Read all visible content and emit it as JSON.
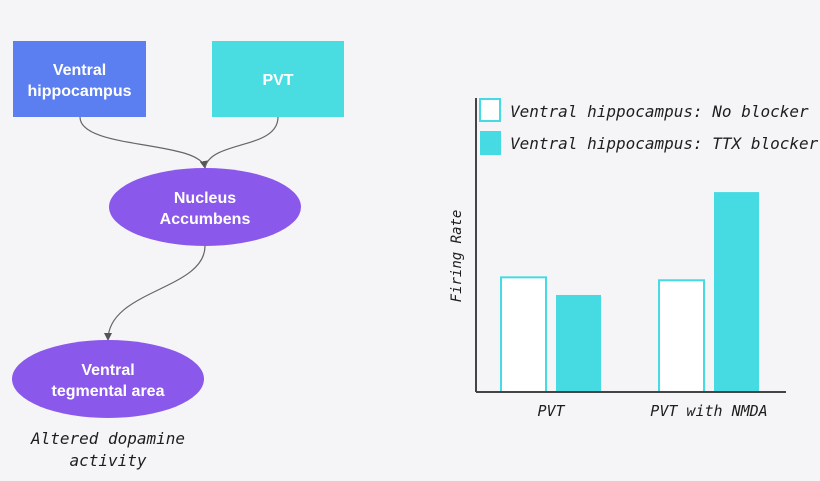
{
  "colors": {
    "background": "#f5f5f7",
    "hippocampus_box": "#5b7ff0",
    "pvt_box": "#49dde2",
    "ellipse": "#8b58ec",
    "bar_no_blocker": "#ffffff",
    "bar_ttx_blocker": "#46dbe3",
    "axis": "#444444"
  },
  "diagram": {
    "nodes": {
      "ventral_hippocampus": {
        "line1": "Ventral",
        "line2": "hippocampus",
        "shape": "rectangle"
      },
      "pvt": {
        "label": "PVT",
        "shape": "rectangle"
      },
      "nucleus_accumbens": {
        "line1": "Nucleus",
        "line2": "Accumbens",
        "shape": "ellipse"
      },
      "vta": {
        "line1": "Ventral",
        "line2": "tegmental area",
        "shape": "ellipse"
      }
    },
    "edges": [
      {
        "from": "ventral_hippocampus",
        "to": "nucleus_accumbens"
      },
      {
        "from": "pvt",
        "to": "nucleus_accumbens"
      },
      {
        "from": "nucleus_accumbens",
        "to": "vta"
      }
    ],
    "caption": {
      "line1": "Altered dopamine",
      "line2": "activity"
    }
  },
  "chart_data": {
    "type": "bar",
    "ylabel": "Firing Rate",
    "xlabel": "",
    "categories": [
      "PVT",
      "PVT with NMDA"
    ],
    "series": [
      {
        "name": "Ventral hippocampus: No blocker",
        "values": [
          0.39,
          0.38
        ],
        "color": "#ffffff"
      },
      {
        "name": "Ventral hippocampus: TTX blocker",
        "values": [
          0.33,
          0.68
        ],
        "color": "#46dbe3"
      }
    ],
    "ylim": [
      0,
      1
    ],
    "y_ticks": false,
    "legend_position": "top-left",
    "grid": false
  }
}
